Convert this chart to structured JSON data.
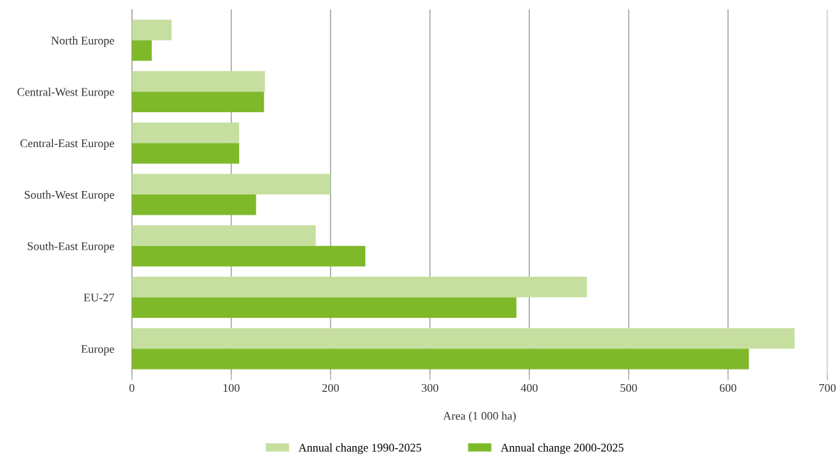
{
  "chart_data": {
    "type": "bar",
    "orientation": "horizontal",
    "xlabel": "Area (1 000 ha)",
    "categories": [
      "North Europe",
      "Central-West Europe",
      "Central-East Europe",
      "South-West Europe",
      "South-East Europe",
      "EU-27",
      "Europe"
    ],
    "series": [
      {
        "name": "Annual change 1990-2025",
        "color": "#c6dfa0",
        "values": [
          40,
          134,
          108,
          200,
          185,
          458,
          667
        ]
      },
      {
        "name": "Annual change 2000-2025",
        "color": "#7fb92a",
        "values": [
          20,
          133,
          108,
          125,
          235,
          387,
          621
        ]
      }
    ],
    "xlim": [
      0,
      700
    ],
    "xticks": [
      0,
      100,
      200,
      300,
      400,
      500,
      600,
      700
    ],
    "grid": "x",
    "legend": "bottom"
  }
}
